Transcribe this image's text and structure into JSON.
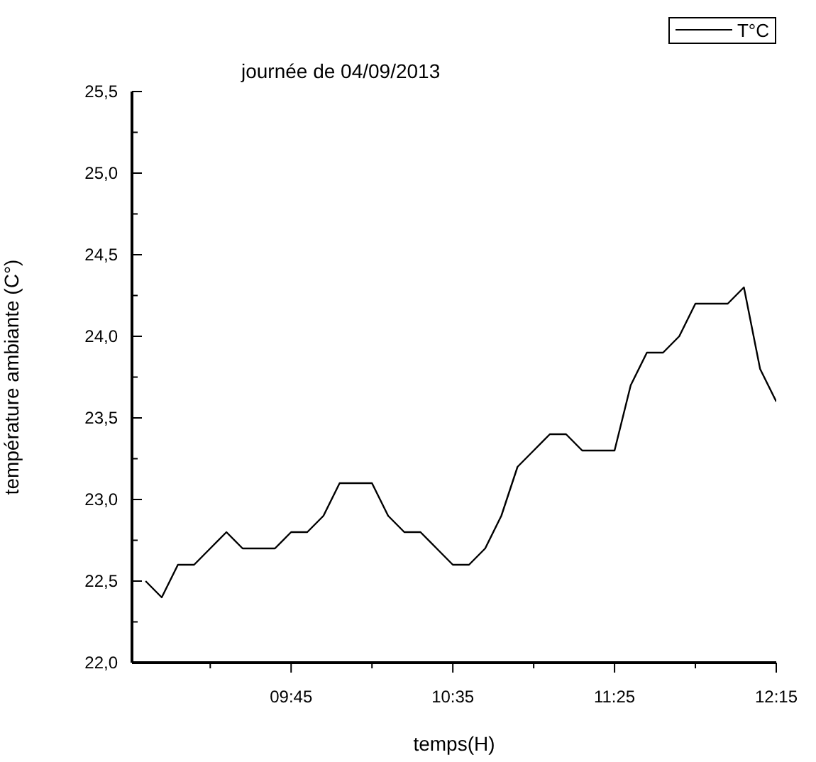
{
  "chart_data": {
    "type": "line",
    "title": "journée de 04/09/2013",
    "xlabel": "temps(H)",
    "ylabel": "température ambiante (C°)",
    "x": [
      9,
      9.0833,
      9.1667,
      9.25,
      9.3333,
      9.4167,
      9.5,
      9.5833,
      9.6667,
      9.75,
      9.8333,
      9.9167,
      10,
      10.0833,
      10.1667,
      10.25,
      10.3333,
      10.4167,
      10.5,
      10.5833,
      10.6667,
      10.75,
      10.8333,
      10.9167,
      11,
      11.0833,
      11.1667,
      11.25,
      11.3333,
      11.4167,
      11.5,
      11.5833,
      11.6667,
      11.75,
      11.8333,
      11.9167,
      12,
      12.0833,
      12.1667,
      12.25
    ],
    "series": [
      {
        "name": "T°C",
        "color": "#000000",
        "values": [
          22.5,
          22.4,
          22.6,
          22.6,
          22.7,
          22.8,
          22.7,
          22.7,
          22.7,
          22.8,
          22.8,
          22.9,
          23.1,
          23.1,
          23.1,
          22.9,
          22.8,
          22.8,
          22.7,
          22.6,
          22.6,
          22.7,
          22.9,
          23.2,
          23.3,
          23.4,
          23.4,
          23.3,
          23.3,
          23.3,
          23.7,
          23.9,
          23.9,
          24.0,
          24.2,
          24.2,
          24.2,
          24.3,
          23.8,
          23.6
        ]
      }
    ],
    "xlim": [
      8.93,
      12.25
    ],
    "xticks": [
      {
        "value": 9.3333,
        "label": null
      },
      {
        "value": 9.75,
        "label": "09:45"
      },
      {
        "value": 10.1667,
        "label": null
      },
      {
        "value": 10.5833,
        "label": "10:35"
      },
      {
        "value": 11,
        "label": null
      },
      {
        "value": 11.4167,
        "label": "11:25"
      },
      {
        "value": 11.8333,
        "label": null
      },
      {
        "value": 12.25,
        "label": "12:15"
      }
    ],
    "ylim": [
      22,
      25.5
    ],
    "yticks": [
      {
        "value": 22,
        "label": "22,0"
      },
      {
        "value": 22.25,
        "label": null
      },
      {
        "value": 22.5,
        "label": "22,5"
      },
      {
        "value": 22.75,
        "label": null
      },
      {
        "value": 23,
        "label": "23,0"
      },
      {
        "value": 23.25,
        "label": null
      },
      {
        "value": 23.5,
        "label": "23,5"
      },
      {
        "value": 23.75,
        "label": null
      },
      {
        "value": 24,
        "label": "24,0"
      },
      {
        "value": 24.25,
        "label": null
      },
      {
        "value": 24.5,
        "label": "24,5"
      },
      {
        "value": 24.75,
        "label": null
      },
      {
        "value": 25,
        "label": "25,0"
      },
      {
        "value": 25.25,
        "label": null
      },
      {
        "value": 25.5,
        "label": "25,5"
      }
    ],
    "grid": false,
    "legend": "top right",
    "marker": "none",
    "line_style": "solid"
  }
}
